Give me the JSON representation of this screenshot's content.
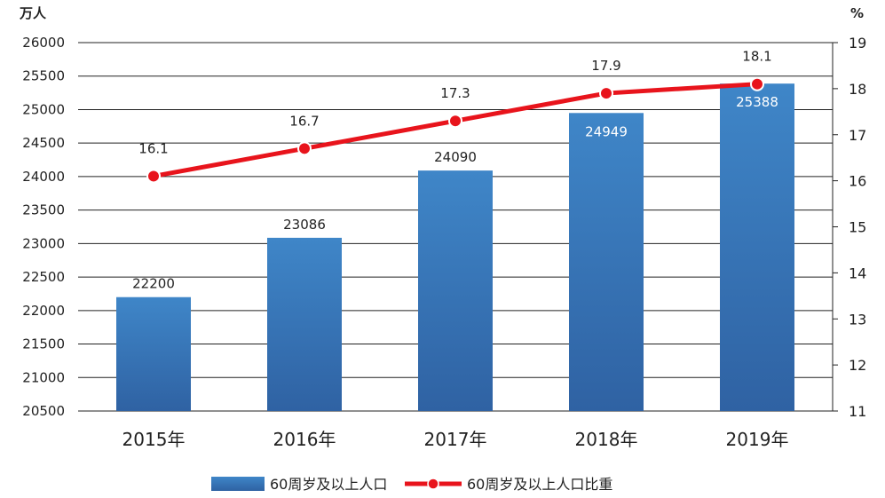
{
  "chart_data": {
    "type": "bar+line",
    "categories": [
      "2015年",
      "2016年",
      "2017年",
      "2018年",
      "2019年"
    ],
    "series": [
      {
        "name": "60周岁及以上人口",
        "type": "bar",
        "axis": "left",
        "values": [
          22200,
          23086,
          24090,
          24949,
          25388
        ],
        "labels": [
          "22200",
          "23086",
          "24090",
          "24949",
          "25388"
        ],
        "color": "#3a78b8"
      },
      {
        "name": "60周岁及以上人口比重",
        "type": "line",
        "axis": "right",
        "values": [
          16.1,
          16.7,
          17.3,
          17.9,
          18.1
        ],
        "labels": [
          "16.1",
          "16.7",
          "17.3",
          "17.9",
          "18.1"
        ],
        "color": "#e8141c"
      }
    ],
    "y_left": {
      "unit": "万人",
      "ylim": [
        20500,
        26000
      ],
      "ticks": [
        "20500",
        "21000",
        "21500",
        "22000",
        "22500",
        "23000",
        "23500",
        "24000",
        "24500",
        "25000",
        "25500",
        "26000"
      ]
    },
    "y_right": {
      "unit": "%",
      "ylim": [
        11,
        19
      ],
      "ticks": [
        "11",
        "12",
        "13",
        "14",
        "15",
        "16",
        "17",
        "18",
        "19"
      ]
    },
    "grid": true,
    "legend_position": "bottom-center"
  }
}
